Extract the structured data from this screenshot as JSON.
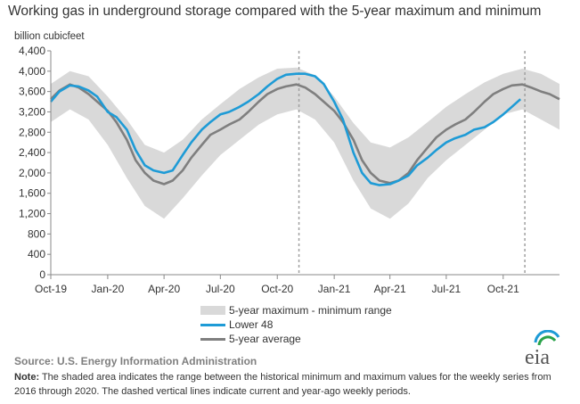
{
  "title": "Working gas in underground  storage compared with the 5-year maximum and minimum",
  "legend": {
    "range": "5-year maximum - minimum range",
    "lower48": "Lower 48",
    "avg": "5-year average"
  },
  "source": "Source:  U.S. Energy Information Administration",
  "note": {
    "label": "Note:",
    "text": " The shaded area indicates the range between the historical minimum and maximum values for the weekly series from 2016 through 2020. The dashed vertical lines indicate current and year-ago weekly periods."
  },
  "logo_text": "eia",
  "colors": {
    "lower48": "#1e9bd6",
    "avg": "#7f7f7f",
    "range": "#d9d9d9",
    "axis": "#888888"
  },
  "chart_data": {
    "type": "line",
    "ylabel": "billion cubicfeet",
    "ylim": [
      0,
      4400
    ],
    "yticks": [
      0,
      400,
      800,
      1200,
      1600,
      2000,
      2400,
      2800,
      3200,
      3600,
      4000,
      4400
    ],
    "ytick_labels": [
      "0",
      "400",
      "800",
      "1,200",
      "1,600",
      "2,000",
      "2,400",
      "2,800",
      "3,200",
      "3,600",
      "4,000",
      "4,400"
    ],
    "xlim": [
      "2019-10-01",
      "2021-12-31"
    ],
    "xticks": [
      "2019-10-01",
      "2020-01-01",
      "2020-04-01",
      "2020-07-01",
      "2020-10-01",
      "2021-01-01",
      "2021-04-01",
      "2021-07-01",
      "2021-10-01"
    ],
    "xtick_labels": [
      "Oct-19",
      "Jan-20",
      "Apr-20",
      "Jul-20",
      "Oct-20",
      "Jan-21",
      "Apr-21",
      "Jul-21",
      "Oct-21"
    ],
    "dashed_lines": [
      "2020-11-05",
      "2021-11-05"
    ],
    "grid": false,
    "band": {
      "name": "5-year maximum - minimum range",
      "x": [
        "2019-10-01",
        "2019-11-01",
        "2019-12-01",
        "2020-01-01",
        "2020-02-01",
        "2020-03-01",
        "2020-04-01",
        "2020-05-01",
        "2020-06-01",
        "2020-07-01",
        "2020-08-01",
        "2020-09-01",
        "2020-10-01",
        "2020-11-01",
        "2020-12-01",
        "2021-01-01",
        "2021-02-01",
        "2021-03-01",
        "2021-04-01",
        "2021-05-01",
        "2021-06-01",
        "2021-07-01",
        "2021-08-01",
        "2021-09-01",
        "2021-10-01",
        "2021-11-01",
        "2021-12-01",
        "2021-12-31"
      ],
      "max": [
        3750,
        4000,
        3900,
        3500,
        3050,
        2550,
        2400,
        2650,
        3050,
        3350,
        3650,
        3880,
        4050,
        4070,
        3920,
        3500,
        2980,
        2600,
        2500,
        2700,
        3000,
        3300,
        3550,
        3780,
        3950,
        4050,
        3950,
        3750
      ],
      "min": [
        3000,
        3250,
        3050,
        2550,
        1900,
        1350,
        1100,
        1500,
        1950,
        2350,
        2650,
        2950,
        3150,
        3250,
        3050,
        2600,
        1850,
        1300,
        1100,
        1400,
        1900,
        2250,
        2550,
        2850,
        3150,
        3250,
        3050,
        2850
      ]
    },
    "series": [
      {
        "name": "Lower 48",
        "x": [
          "2019-10-01",
          "2019-10-15",
          "2019-11-01",
          "2019-11-15",
          "2019-12-01",
          "2019-12-15",
          "2020-01-01",
          "2020-01-15",
          "2020-02-01",
          "2020-02-15",
          "2020-03-01",
          "2020-03-15",
          "2020-04-01",
          "2020-04-15",
          "2020-05-01",
          "2020-05-15",
          "2020-06-01",
          "2020-06-15",
          "2020-07-01",
          "2020-07-15",
          "2020-08-01",
          "2020-08-15",
          "2020-09-01",
          "2020-09-15",
          "2020-10-01",
          "2020-10-15",
          "2020-11-01",
          "2020-11-15",
          "2020-12-01",
          "2020-12-15",
          "2021-01-01",
          "2021-01-15",
          "2021-02-01",
          "2021-02-15",
          "2021-03-01",
          "2021-03-15",
          "2021-04-01",
          "2021-04-15",
          "2021-05-01",
          "2021-05-15",
          "2021-06-01",
          "2021-06-15",
          "2021-07-01",
          "2021-07-15",
          "2021-08-01",
          "2021-08-15",
          "2021-09-01",
          "2021-09-15",
          "2021-10-01",
          "2021-10-15",
          "2021-10-29"
        ],
        "values": [
          3400,
          3600,
          3720,
          3700,
          3620,
          3500,
          3200,
          3100,
          2850,
          2450,
          2150,
          2050,
          2000,
          2050,
          2350,
          2600,
          2850,
          3000,
          3150,
          3200,
          3300,
          3400,
          3550,
          3700,
          3850,
          3930,
          3950,
          3950,
          3900,
          3750,
          3400,
          3050,
          2400,
          2000,
          1800,
          1760,
          1780,
          1850,
          1950,
          2150,
          2300,
          2450,
          2600,
          2680,
          2750,
          2850,
          2900,
          3000,
          3150,
          3300,
          3450
        ]
      },
      {
        "name": "5-year average",
        "x": [
          "2019-10-01",
          "2019-10-15",
          "2019-11-01",
          "2019-11-15",
          "2019-12-01",
          "2019-12-15",
          "2020-01-01",
          "2020-01-15",
          "2020-02-01",
          "2020-02-15",
          "2020-03-01",
          "2020-03-15",
          "2020-04-01",
          "2020-04-15",
          "2020-05-01",
          "2020-05-15",
          "2020-06-01",
          "2020-06-15",
          "2020-07-01",
          "2020-07-15",
          "2020-08-01",
          "2020-08-15",
          "2020-09-01",
          "2020-09-15",
          "2020-10-01",
          "2020-10-15",
          "2020-11-01",
          "2020-11-15",
          "2020-12-01",
          "2020-12-15",
          "2021-01-01",
          "2021-01-15",
          "2021-02-01",
          "2021-02-15",
          "2021-03-01",
          "2021-03-15",
          "2021-04-01",
          "2021-04-15",
          "2021-05-01",
          "2021-05-15",
          "2021-06-01",
          "2021-06-15",
          "2021-07-01",
          "2021-07-15",
          "2021-08-01",
          "2021-08-15",
          "2021-09-01",
          "2021-09-15",
          "2021-10-01",
          "2021-10-15",
          "2021-11-01",
          "2021-11-15",
          "2021-12-01",
          "2021-12-15",
          "2021-12-31"
        ],
        "values": [
          3450,
          3620,
          3740,
          3680,
          3550,
          3400,
          3220,
          3000,
          2650,
          2250,
          2000,
          1850,
          1780,
          1850,
          2050,
          2300,
          2550,
          2750,
          2850,
          2950,
          3050,
          3200,
          3400,
          3550,
          3650,
          3700,
          3740,
          3680,
          3550,
          3400,
          3220,
          3000,
          2650,
          2250,
          2000,
          1850,
          1800,
          1850,
          2000,
          2250,
          2500,
          2700,
          2850,
          2950,
          3050,
          3200,
          3400,
          3550,
          3650,
          3720,
          3740,
          3680,
          3600,
          3550,
          3450
        ]
      }
    ]
  }
}
